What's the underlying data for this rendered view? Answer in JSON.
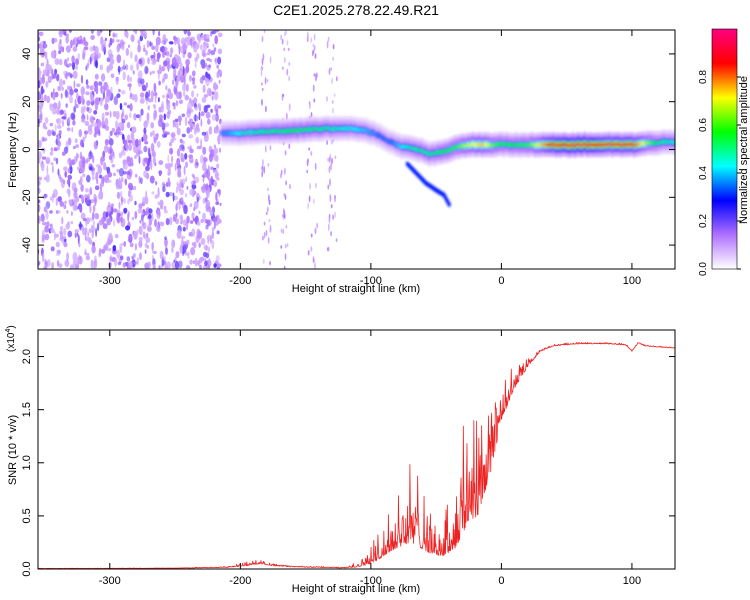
{
  "title": "C2E1.2025.278.22.49.R21",
  "chart_data": [
    {
      "type": "heatmap",
      "name": "spectrogram",
      "xlabel": "Height of straight line (km)",
      "ylabel": "Frequency (Hz)",
      "xlim": [
        -355,
        133
      ],
      "ylim": [
        -50,
        50
      ],
      "xticks": [
        -300,
        -200,
        -100,
        0,
        100
      ],
      "yticks": [
        -40,
        -20,
        0,
        20,
        40
      ],
      "noise_region_x": [
        -355,
        -215
      ],
      "sparse_columns_x": [
        -180,
        -165,
        -145,
        -130
      ],
      "ridge": {
        "x": [
          -215,
          -200,
          -180,
          -160,
          -140,
          -120,
          -105,
          -95,
          -85,
          -75,
          -65,
          -55,
          -45,
          -35,
          -25,
          -15,
          -5,
          5,
          20,
          40,
          60,
          80,
          100,
          120,
          133
        ],
        "freq": [
          7,
          7,
          7.5,
          8,
          8.5,
          9,
          8,
          6,
          3,
          1,
          0,
          -2,
          -1,
          1,
          2,
          2,
          2,
          2,
          2,
          2,
          2,
          2,
          2,
          3,
          3
        ],
        "amplitude": [
          0.35,
          0.45,
          0.5,
          0.55,
          0.5,
          0.45,
          0.4,
          0.35,
          0.35,
          0.45,
          0.5,
          0.5,
          0.55,
          0.6,
          0.7,
          0.75,
          0.6,
          0.55,
          0.6,
          0.9,
          0.95,
          0.85,
          0.85,
          0.5,
          0.45
        ]
      },
      "branch": {
        "x": [
          -72,
          -65,
          -58,
          -50,
          -44,
          -40
        ],
        "freq": [
          -6,
          -10,
          -14,
          -17,
          -19,
          -23
        ]
      },
      "colorbar": {
        "label": "Normalized spectral amplitude",
        "range": [
          0,
          1
        ],
        "ticks": [
          "0.0",
          "0.2",
          "0.4",
          "0.6",
          "0.8"
        ],
        "tick_values": [
          0,
          0.2,
          0.4,
          0.6,
          0.8
        ],
        "colors": [
          "#ffffff",
          "#b070ff",
          "#0000ff",
          "#00ffff",
          "#00ff00",
          "#ffff00",
          "#ff0000",
          "#ff0080"
        ]
      }
    },
    {
      "type": "line",
      "name": "snr",
      "xlabel": "Height of straight line (km)",
      "ylabel": "SNR (10 * v/v)",
      "multiplier_label": "(x10",
      "multiplier_exp": "4",
      "xlim": [
        -355,
        133
      ],
      "ylim": [
        0,
        2.25
      ],
      "xticks": [
        -300,
        -200,
        -100,
        0,
        100
      ],
      "yticks": [
        "0.0",
        "0.5",
        "1.0",
        "1.5",
        "2.0"
      ],
      "ytick_values": [
        0,
        0.5,
        1.0,
        1.5,
        2.0
      ],
      "line_color": "#ee2222",
      "envelope": {
        "x": [
          -355,
          -300,
          -250,
          -210,
          -195,
          -185,
          -175,
          -160,
          -140,
          -120,
          -110,
          -100,
          -90,
          -80,
          -70,
          -62,
          -55,
          -45,
          -35,
          -25,
          -18,
          -10,
          -5,
          0,
          10,
          20,
          30,
          40,
          60,
          80,
          95,
          100,
          105,
          110,
          120,
          133
        ],
        "base": [
          0.005,
          0.006,
          0.008,
          0.015,
          0.03,
          0.05,
          0.03,
          0.02,
          0.015,
          0.01,
          0.02,
          0.05,
          0.12,
          0.2,
          0.25,
          0.2,
          0.15,
          0.12,
          0.2,
          0.45,
          0.5,
          0.8,
          1.1,
          1.4,
          1.7,
          1.9,
          2.05,
          2.1,
          2.12,
          2.12,
          2.11,
          2.05,
          2.13,
          2.1,
          2.09,
          2.08
        ],
        "amp": [
          0,
          0,
          0,
          0.01,
          0.04,
          0.04,
          0.02,
          0.01,
          0.01,
          0.01,
          0.06,
          0.2,
          0.35,
          0.45,
          0.8,
          0.7,
          0.4,
          0.35,
          0.7,
          1.3,
          1.5,
          1.1,
          0.8,
          0.5,
          0.2,
          0.08,
          0.03,
          0.02,
          0.015,
          0.015,
          0.015,
          0.01,
          0.01,
          0.01,
          0.01,
          0.01
        ]
      }
    }
  ]
}
